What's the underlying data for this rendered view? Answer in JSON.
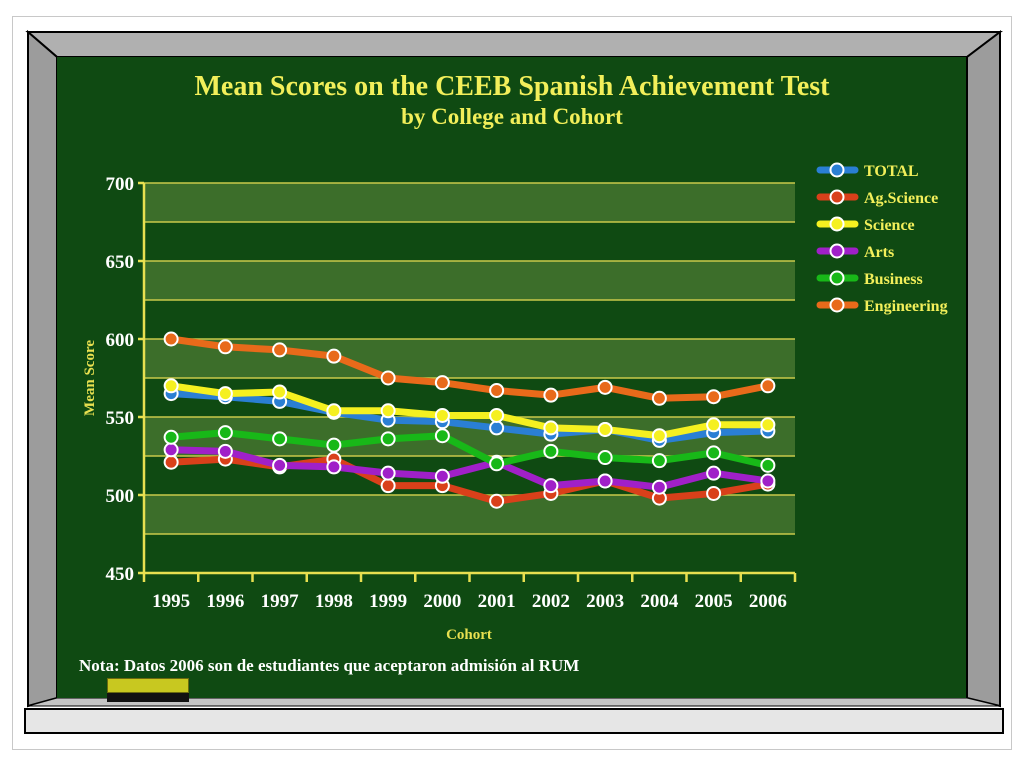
{
  "slide": {
    "note": "Nota:  Datos 2006 son de estudiantes que aceptaron admisión al RUM"
  },
  "colors": {
    "board": "#0f4a12",
    "frame": "#a6a6a6",
    "gridline": "#c9c94a",
    "title": "#f2ef5a",
    "tick_label": "#ffffff",
    "axis_label": "#e8e050"
  },
  "chart_data": {
    "type": "line",
    "title": "Mean Scores on the CEEB Spanish Achievement Test",
    "subtitle": "by College and Cohort",
    "xlabel": "Cohort",
    "ylabel": "Mean Score",
    "ylim": [
      450,
      700
    ],
    "yticks": [
      450,
      500,
      550,
      600,
      650,
      700
    ],
    "grid": true,
    "legend_position": "right",
    "categories": [
      "1995",
      "1996",
      "1997",
      "1998",
      "1999",
      "2000",
      "2001",
      "2002",
      "2003",
      "2004",
      "2005",
      "2006"
    ],
    "series": [
      {
        "name": "TOTAL",
        "color": "#2a7fd4",
        "values": [
          565,
          563,
          560,
          553,
          548,
          547,
          543,
          539,
          542,
          535,
          540,
          541
        ]
      },
      {
        "name": "Ag.Science",
        "color": "#d9401a",
        "values": [
          521,
          523,
          518,
          523,
          506,
          506,
          496,
          501,
          509,
          498,
          501,
          507
        ]
      },
      {
        "name": "Science",
        "color": "#f5f020",
        "values": [
          570,
          565,
          566,
          554,
          554,
          551,
          551,
          543,
          542,
          538,
          545,
          545
        ]
      },
      {
        "name": "Arts",
        "color": "#a020c8",
        "values": [
          529,
          528,
          519,
          518,
          514,
          512,
          521,
          506,
          509,
          505,
          514,
          509
        ]
      },
      {
        "name": "Business",
        "color": "#18b818",
        "values": [
          537,
          540,
          536,
          532,
          536,
          538,
          520,
          528,
          524,
          522,
          527,
          519
        ]
      },
      {
        "name": "Engineering",
        "color": "#e86a1a",
        "values": [
          600,
          595,
          593,
          589,
          575,
          572,
          567,
          564,
          569,
          562,
          563,
          570
        ]
      }
    ]
  }
}
